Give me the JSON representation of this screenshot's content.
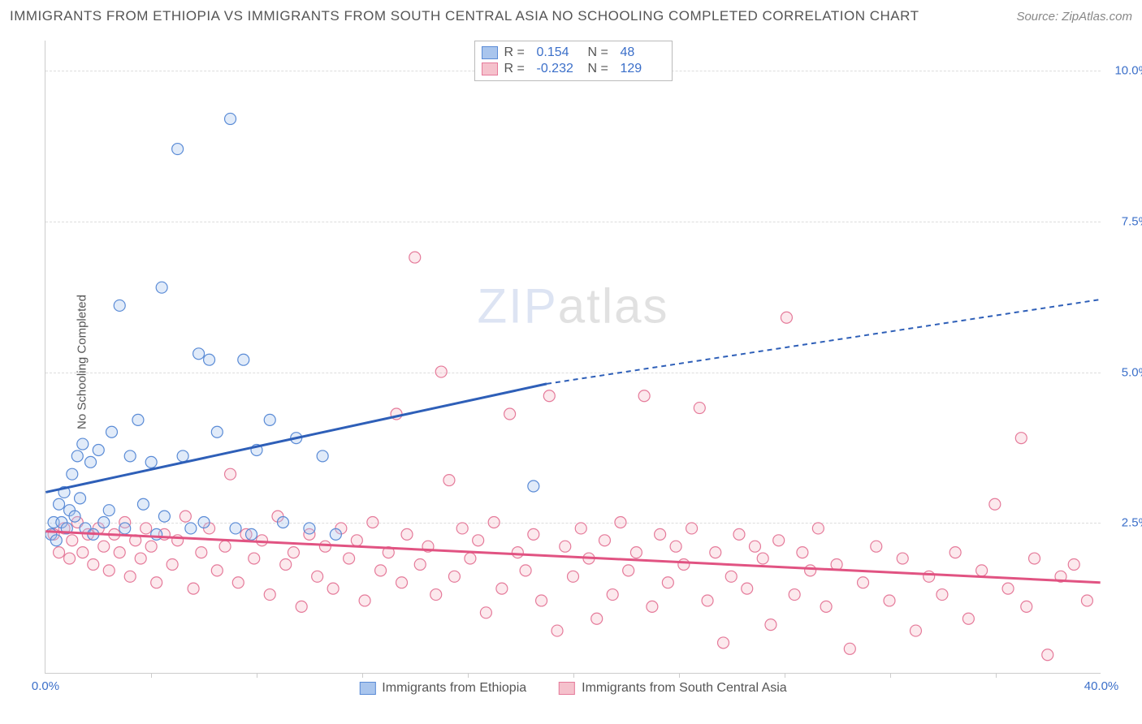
{
  "title": "IMMIGRANTS FROM ETHIOPIA VS IMMIGRANTS FROM SOUTH CENTRAL ASIA NO SCHOOLING COMPLETED CORRELATION CHART",
  "source": "Source: ZipAtlas.com",
  "y_axis_label": "No Schooling Completed",
  "watermark_zip": "ZIP",
  "watermark_atlas": "atlas",
  "chart": {
    "type": "scatter-correlation",
    "background_color": "#ffffff",
    "grid_color": "#dddddd",
    "axis_color": "#cccccc",
    "tick_color": "#3b6fc9",
    "xlim": [
      0,
      40
    ],
    "ylim": [
      0,
      10.5
    ],
    "yticks": [
      {
        "v": 2.5,
        "label": "2.5%"
      },
      {
        "v": 5.0,
        "label": "5.0%"
      },
      {
        "v": 7.5,
        "label": "7.5%"
      },
      {
        "v": 10.0,
        "label": "10.0%"
      }
    ],
    "xticks_major": [
      {
        "v": 0,
        "label": "0.0%"
      },
      {
        "v": 40,
        "label": "40.0%"
      }
    ],
    "xticks_minor": [
      4,
      8,
      12,
      16,
      20,
      24,
      28,
      32,
      36
    ],
    "marker_radius": 7,
    "marker_stroke_width": 1.2,
    "marker_fill_opacity": 0.35,
    "trend_solid_width": 3,
    "trend_dash_width": 2
  },
  "series": {
    "ethiopia": {
      "label": "Immigrants from Ethiopia",
      "fill": "#a9c5ed",
      "stroke": "#5a8bd6",
      "trend_color": "#2e5fb8",
      "R": "0.154",
      "N": "48",
      "trend": {
        "x1": 0,
        "y1": 3.0,
        "x2_solid": 19,
        "y2_solid": 4.8,
        "x2": 40,
        "y2": 6.2
      },
      "points": [
        [
          0.2,
          2.3
        ],
        [
          0.3,
          2.5
        ],
        [
          0.4,
          2.2
        ],
        [
          0.5,
          2.8
        ],
        [
          0.6,
          2.5
        ],
        [
          0.7,
          3.0
        ],
        [
          0.8,
          2.4
        ],
        [
          0.9,
          2.7
        ],
        [
          1.0,
          3.3
        ],
        [
          1.1,
          2.6
        ],
        [
          1.2,
          3.6
        ],
        [
          1.3,
          2.9
        ],
        [
          1.4,
          3.8
        ],
        [
          1.5,
          2.4
        ],
        [
          1.7,
          3.5
        ],
        [
          1.8,
          2.3
        ],
        [
          2.0,
          3.7
        ],
        [
          2.2,
          2.5
        ],
        [
          2.4,
          2.7
        ],
        [
          2.5,
          4.0
        ],
        [
          2.8,
          6.1
        ],
        [
          3.0,
          2.4
        ],
        [
          3.2,
          3.6
        ],
        [
          3.5,
          4.2
        ],
        [
          3.7,
          2.8
        ],
        [
          4.0,
          3.5
        ],
        [
          4.2,
          2.3
        ],
        [
          4.4,
          6.4
        ],
        [
          4.5,
          2.6
        ],
        [
          5.0,
          8.7
        ],
        [
          5.2,
          3.6
        ],
        [
          5.5,
          2.4
        ],
        [
          5.8,
          5.3
        ],
        [
          6.0,
          2.5
        ],
        [
          6.2,
          5.2
        ],
        [
          6.5,
          4.0
        ],
        [
          7.0,
          9.2
        ],
        [
          7.2,
          2.4
        ],
        [
          7.5,
          5.2
        ],
        [
          7.8,
          2.3
        ],
        [
          8.0,
          3.7
        ],
        [
          8.5,
          4.2
        ],
        [
          9.0,
          2.5
        ],
        [
          9.5,
          3.9
        ],
        [
          10.0,
          2.4
        ],
        [
          10.5,
          3.6
        ],
        [
          11.0,
          2.3
        ],
        [
          18.5,
          3.1
        ]
      ]
    },
    "scasia": {
      "label": "Immigrants from South Central Asia",
      "fill": "#f5c1cc",
      "stroke": "#e57a9a",
      "trend_color": "#e15382",
      "R": "-0.232",
      "N": "129",
      "trend": {
        "x1": 0,
        "y1": 2.35,
        "x2_solid": 40,
        "y2_solid": 1.5,
        "x2": 40,
        "y2": 1.5
      },
      "points": [
        [
          0.3,
          2.3
        ],
        [
          0.5,
          2.0
        ],
        [
          0.7,
          2.4
        ],
        [
          0.9,
          1.9
        ],
        [
          1.0,
          2.2
        ],
        [
          1.2,
          2.5
        ],
        [
          1.4,
          2.0
        ],
        [
          1.6,
          2.3
        ],
        [
          1.8,
          1.8
        ],
        [
          2.0,
          2.4
        ],
        [
          2.2,
          2.1
        ],
        [
          2.4,
          1.7
        ],
        [
          2.6,
          2.3
        ],
        [
          2.8,
          2.0
        ],
        [
          3.0,
          2.5
        ],
        [
          3.2,
          1.6
        ],
        [
          3.4,
          2.2
        ],
        [
          3.6,
          1.9
        ],
        [
          3.8,
          2.4
        ],
        [
          4.0,
          2.1
        ],
        [
          4.2,
          1.5
        ],
        [
          4.5,
          2.3
        ],
        [
          4.8,
          1.8
        ],
        [
          5.0,
          2.2
        ],
        [
          5.3,
          2.6
        ],
        [
          5.6,
          1.4
        ],
        [
          5.9,
          2.0
        ],
        [
          6.2,
          2.4
        ],
        [
          6.5,
          1.7
        ],
        [
          6.8,
          2.1
        ],
        [
          7.0,
          3.3
        ],
        [
          7.3,
          1.5
        ],
        [
          7.6,
          2.3
        ],
        [
          7.9,
          1.9
        ],
        [
          8.2,
          2.2
        ],
        [
          8.5,
          1.3
        ],
        [
          8.8,
          2.6
        ],
        [
          9.1,
          1.8
        ],
        [
          9.4,
          2.0
        ],
        [
          9.7,
          1.1
        ],
        [
          10.0,
          2.3
        ],
        [
          10.3,
          1.6
        ],
        [
          10.6,
          2.1
        ],
        [
          10.9,
          1.4
        ],
        [
          11.2,
          2.4
        ],
        [
          11.5,
          1.9
        ],
        [
          11.8,
          2.2
        ],
        [
          12.1,
          1.2
        ],
        [
          12.4,
          2.5
        ],
        [
          12.7,
          1.7
        ],
        [
          13.0,
          2.0
        ],
        [
          13.3,
          4.3
        ],
        [
          13.5,
          1.5
        ],
        [
          13.7,
          2.3
        ],
        [
          14.0,
          6.9
        ],
        [
          14.2,
          1.8
        ],
        [
          14.5,
          2.1
        ],
        [
          14.8,
          1.3
        ],
        [
          15.0,
          5.0
        ],
        [
          15.3,
          3.2
        ],
        [
          15.5,
          1.6
        ],
        [
          15.8,
          2.4
        ],
        [
          16.1,
          1.9
        ],
        [
          16.4,
          2.2
        ],
        [
          16.7,
          1.0
        ],
        [
          17.0,
          2.5
        ],
        [
          17.3,
          1.4
        ],
        [
          17.6,
          4.3
        ],
        [
          17.9,
          2.0
        ],
        [
          18.2,
          1.7
        ],
        [
          18.5,
          2.3
        ],
        [
          18.8,
          1.2
        ],
        [
          19.1,
          4.6
        ],
        [
          19.4,
          0.7
        ],
        [
          19.7,
          2.1
        ],
        [
          20.0,
          1.6
        ],
        [
          20.3,
          2.4
        ],
        [
          20.6,
          1.9
        ],
        [
          20.9,
          0.9
        ],
        [
          21.2,
          2.2
        ],
        [
          21.5,
          1.3
        ],
        [
          21.8,
          2.5
        ],
        [
          22.1,
          1.7
        ],
        [
          22.4,
          2.0
        ],
        [
          22.7,
          4.6
        ],
        [
          23.0,
          1.1
        ],
        [
          23.3,
          2.3
        ],
        [
          23.6,
          1.5
        ],
        [
          23.9,
          2.1
        ],
        [
          24.2,
          1.8
        ],
        [
          24.5,
          2.4
        ],
        [
          24.8,
          4.4
        ],
        [
          25.1,
          1.2
        ],
        [
          25.4,
          2.0
        ],
        [
          25.7,
          0.5
        ],
        [
          26.0,
          1.6
        ],
        [
          26.3,
          2.3
        ],
        [
          26.6,
          1.4
        ],
        [
          26.9,
          2.1
        ],
        [
          27.2,
          1.9
        ],
        [
          27.5,
          0.8
        ],
        [
          27.8,
          2.2
        ],
        [
          28.1,
          5.9
        ],
        [
          28.4,
          1.3
        ],
        [
          28.7,
          2.0
        ],
        [
          29.0,
          1.7
        ],
        [
          29.3,
          2.4
        ],
        [
          29.6,
          1.1
        ],
        [
          30.0,
          1.8
        ],
        [
          30.5,
          0.4
        ],
        [
          31.0,
          1.5
        ],
        [
          31.5,
          2.1
        ],
        [
          32.0,
          1.2
        ],
        [
          32.5,
          1.9
        ],
        [
          33.0,
          0.7
        ],
        [
          33.5,
          1.6
        ],
        [
          34.0,
          1.3
        ],
        [
          34.5,
          2.0
        ],
        [
          35.0,
          0.9
        ],
        [
          35.5,
          1.7
        ],
        [
          36.0,
          2.8
        ],
        [
          36.5,
          1.4
        ],
        [
          37.0,
          3.9
        ],
        [
          37.2,
          1.1
        ],
        [
          37.5,
          1.9
        ],
        [
          38.0,
          0.3
        ],
        [
          38.5,
          1.6
        ],
        [
          39.0,
          1.8
        ],
        [
          39.5,
          1.2
        ]
      ]
    }
  },
  "legend_labels": {
    "R": "R =",
    "N": "N ="
  }
}
